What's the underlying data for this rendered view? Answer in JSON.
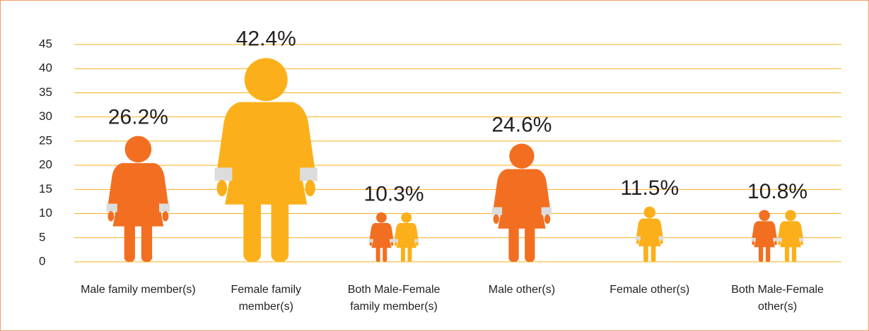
{
  "chart_data": {
    "type": "pictograph",
    "categories": [
      "Male family member(s)",
      "Female family member(s)",
      "Both Male-Female family member(s)",
      "Male other(s)",
      "Female other(s)",
      "Both Male-Female other(s)"
    ],
    "values": [
      26.2,
      42.4,
      10.3,
      24.6,
      11.5,
      10.8
    ],
    "value_labels": [
      "26.2%",
      "42.4%",
      "10.3%",
      "24.6%",
      "11.5%",
      "10.8%"
    ],
    "figures": [
      [
        "#f26f21"
      ],
      [
        "#fbb01b"
      ],
      [
        "#f26f21",
        "#fbb01b"
      ],
      [
        "#f26f21"
      ],
      [
        "#fbb01b"
      ],
      [
        "#f26f21",
        "#fbb01b"
      ]
    ],
    "ylim": [
      0,
      45
    ],
    "yticks": [
      0,
      5,
      10,
      15,
      20,
      25,
      30,
      35,
      40,
      45
    ],
    "grid": true,
    "grid_color": "#fbb01b"
  }
}
